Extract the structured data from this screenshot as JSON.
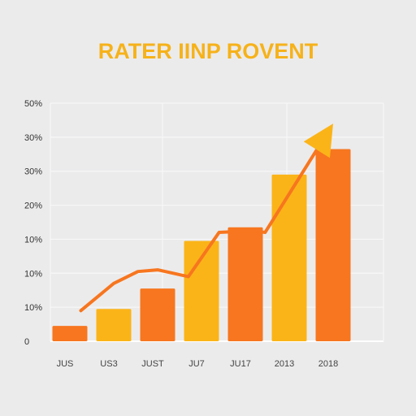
{
  "chart_data": {
    "type": "bar",
    "title": "RATER IINP ROVENT",
    "title_color": "#f6b21a",
    "categories": [
      "JUS",
      "US3",
      "JUST",
      "JU7",
      "JU17",
      "2013",
      "2018"
    ],
    "y_tick_labels": [
      "0",
      "10%",
      "10%",
      "10%",
      "20%",
      "30%",
      "30%",
      "50%"
    ],
    "ylim": [
      0,
      7
    ],
    "grid": true,
    "series": [
      {
        "type": "bar",
        "values": [
          0.45,
          0.95,
          1.55,
          2.95,
          3.35,
          4.9,
          5.65
        ],
        "colors": [
          "#f7761f",
          "#fbb418",
          "#f7761f",
          "#fbb418",
          "#f7761f",
          "#fbb418",
          "#f7761f"
        ]
      },
      {
        "type": "line",
        "color": "#f7761f",
        "arrow_color": "#fbb418",
        "x": [
          0.25,
          1.0,
          1.55,
          2.0,
          2.7,
          3.4,
          4.2,
          4.45,
          6.0
        ],
        "values": [
          0.9,
          1.7,
          2.05,
          2.1,
          1.9,
          3.2,
          3.25,
          3.2,
          6.4
        ]
      }
    ]
  }
}
